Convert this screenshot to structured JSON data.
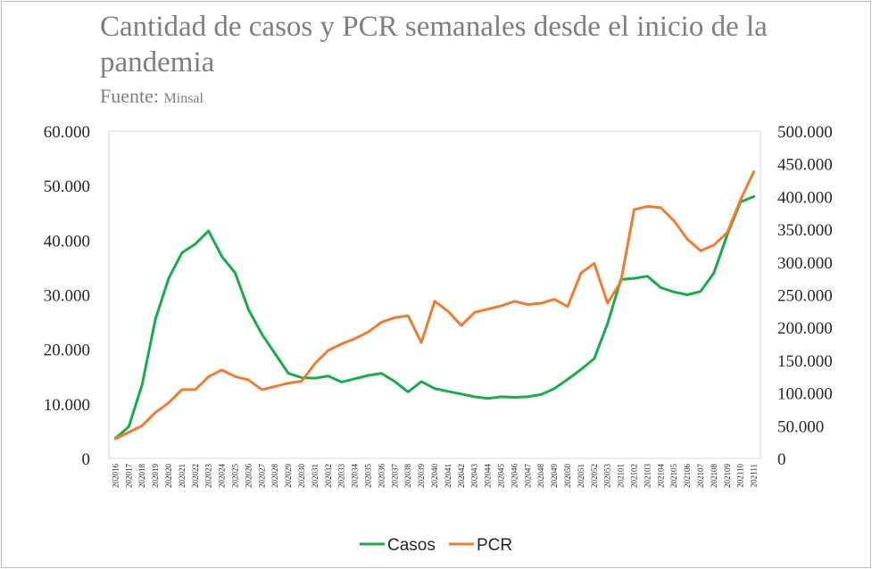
{
  "chart_data": {
    "type": "line",
    "title": "Cantidad de casos y PCR semanales desde el inicio de la pandemia",
    "source_label": "Fuente",
    "source_value": "Minsal",
    "x": [
      "202016",
      "202017",
      "202018",
      "202019",
      "202020",
      "202021",
      "202022",
      "202023",
      "202024",
      "202025",
      "202026",
      "202027",
      "202028",
      "202029",
      "202030",
      "202031",
      "202032",
      "202033",
      "202034",
      "202035",
      "202036",
      "202037",
      "202038",
      "202039",
      "202040",
      "202041",
      "202042",
      "202043",
      "202044",
      "202045",
      "202046",
      "202047",
      "202048",
      "202049",
      "202050",
      "202051",
      "202052",
      "202053",
      "202101",
      "202102",
      "202103",
      "202104",
      "202105",
      "202106",
      "202107",
      "202108",
      "202109",
      "202110",
      "202111"
    ],
    "y_left": {
      "ticks": [
        "0",
        "10.000",
        "20.000",
        "30.000",
        "40.000",
        "50.000",
        "60.000"
      ],
      "lim": [
        0,
        60000
      ]
    },
    "y_right": {
      "ticks": [
        "0",
        "50.000",
        "100.000",
        "150.000",
        "200.000",
        "250.000",
        "300.000",
        "350.000",
        "400.000",
        "450.000",
        "500.000"
      ],
      "lim": [
        0,
        500000
      ]
    },
    "series": [
      {
        "name": "Casos",
        "axis": "left",
        "color": "#1aab4b",
        "values": [
          3700,
          5800,
          13500,
          25500,
          33000,
          37700,
          39300,
          41700,
          37000,
          34000,
          27300,
          22800,
          19200,
          15600,
          14800,
          14700,
          15100,
          14000,
          14600,
          15200,
          15600,
          14100,
          12200,
          14100,
          12800,
          12300,
          11800,
          11300,
          11000,
          11300,
          11200,
          11300,
          11700,
          12800,
          14500,
          16300,
          18300,
          24700,
          32800,
          33000,
          33400,
          31300,
          30500,
          30000,
          30600,
          34000,
          41000,
          47000,
          48000
        ]
      },
      {
        "name": "PCR",
        "axis": "right",
        "color": "#ed7d31",
        "values": [
          30000,
          40000,
          50000,
          70000,
          85000,
          105000,
          105000,
          125000,
          135000,
          125000,
          120000,
          105000,
          110000,
          115000,
          118000,
          145000,
          165000,
          175000,
          183000,
          193000,
          208000,
          215000,
          218000,
          177000,
          240000,
          225000,
          203000,
          223000,
          228000,
          233000,
          240000,
          235000,
          237000,
          243000,
          232000,
          283000,
          298000,
          237000,
          270000,
          380000,
          385000,
          383000,
          363000,
          335000,
          317000,
          326000,
          345000,
          395000,
          438000
        ]
      }
    ],
    "legend_position": "bottom"
  }
}
